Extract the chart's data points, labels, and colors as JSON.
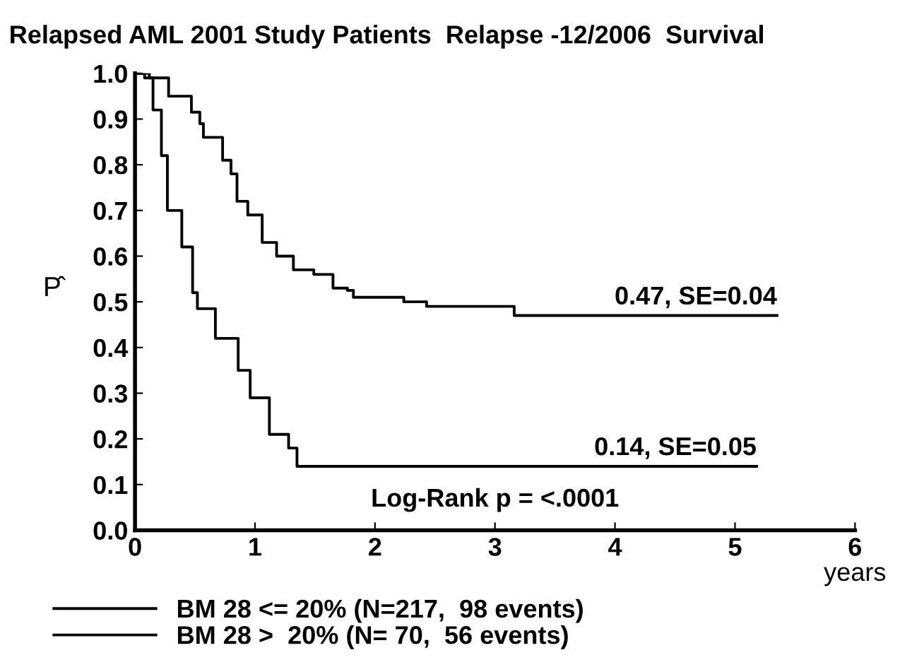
{
  "chart_data": {
    "type": "step",
    "title": "Relapsed AML 2001 Study Patients  Relapse -12/2006  Survival",
    "xlabel": "years",
    "ylabel": "P̂",
    "series": [
      {
        "name": "BM 28 <= 20% (N=217,  98 events)",
        "color": "#000000",
        "x": [
          0,
          0.12,
          0.28,
          0.47,
          0.54,
          0.57,
          0.66,
          0.73,
          0.8,
          0.85,
          0.94,
          1.06,
          1.18,
          1.32,
          1.49,
          1.65,
          1.77,
          1.82,
          2.24,
          2.43,
          3.16,
          5.35
        ],
        "values": [
          1.0,
          0.99,
          0.95,
          0.915,
          0.89,
          0.86,
          0.86,
          0.81,
          0.78,
          0.72,
          0.69,
          0.63,
          0.6,
          0.57,
          0.56,
          0.53,
          0.525,
          0.51,
          0.5,
          0.49,
          0.47,
          0.47
        ]
      },
      {
        "name": "BM 28 >  20% (N= 70,  56 events)",
        "color": "#000000",
        "x": [
          0,
          0.08,
          0.15,
          0.22,
          0.27,
          0.39,
          0.48,
          0.52,
          0.67,
          0.86,
          0.96,
          1.12,
          1.28,
          1.35,
          5.18
        ],
        "values": [
          1.0,
          0.99,
          0.92,
          0.82,
          0.7,
          0.62,
          0.52,
          0.485,
          0.42,
          0.35,
          0.29,
          0.21,
          0.18,
          0.14,
          0.14
        ]
      }
    ],
    "xlim": [
      0,
      6
    ],
    "ylim": [
      0,
      1
    ],
    "xticks": [
      0,
      1,
      2,
      3,
      4,
      5,
      6
    ],
    "yticks": [
      {
        "value": 0,
        "label": "0.0"
      },
      {
        "value": 0.1,
        "label": "0.1"
      },
      {
        "value": 0.2,
        "label": "0.2"
      },
      {
        "value": 0.3,
        "label": "0.3"
      },
      {
        "value": 0.4,
        "label": "0.4"
      },
      {
        "value": 0.5,
        "label": "0.5"
      },
      {
        "value": 0.6,
        "label": "0.6"
      },
      {
        "value": 0.7,
        "label": "0.7"
      },
      {
        "value": 0.8,
        "label": "0.8"
      },
      {
        "value": 0.9,
        "label": "0.9"
      },
      {
        "value": 1,
        "label": "1.0"
      }
    ],
    "annotations": [
      {
        "text": "0.47, SE=0.04",
        "x": 5.35,
        "y": 0.47
      },
      {
        "text": "0.14, SE=0.05",
        "x": 5.18,
        "y": 0.14
      },
      "Log-Rank p = <.0001"
    ],
    "legend": "bottom left",
    "grid": false
  }
}
